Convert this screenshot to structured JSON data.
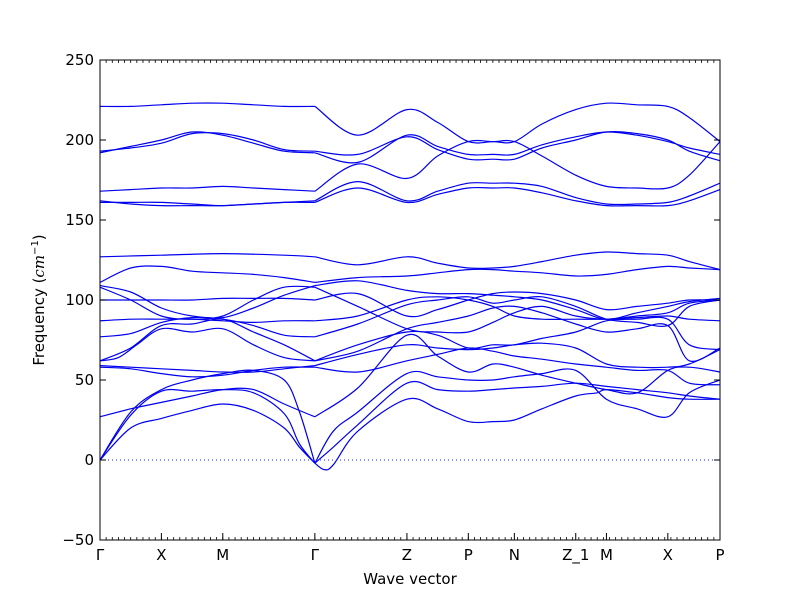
{
  "chart_data": {
    "type": "line",
    "xlabel": "Wave vector",
    "ylabel_prefix": "Frequency (",
    "ylabel_unit": "cm",
    "ylabel_exp": "−1",
    "ylabel_suffix": ")",
    "ylim": [
      -50,
      250
    ],
    "yticks": [
      "−50",
      "0",
      "50",
      "100",
      "150",
      "200",
      "250"
    ],
    "ytick_values": [
      -50,
      0,
      50,
      100,
      150,
      200,
      250
    ],
    "xtick_labels": [
      "Γ",
      "X",
      "M",
      "Γ",
      "Z",
      "P",
      "N",
      "Z_1",
      "M",
      "X",
      "P"
    ],
    "xtick_positions": [
      0,
      1,
      2,
      3.5,
      5,
      6,
      6.75,
      7.75,
      8.25,
      9.25,
      10.1
    ],
    "xlim": [
      0,
      10.1
    ],
    "zero_line": {
      "y": 0,
      "color": "#1f1fff",
      "style": "dotted"
    },
    "line_color": "#0000ee",
    "grid": false,
    "series": [
      {
        "x": [
          0,
          0.5,
          1,
          1.5,
          2,
          2.5,
          3,
          3.25,
          3.5
        ],
        "values": [
          0,
          20,
          26,
          31,
          35,
          31,
          20,
          8,
          -2
        ]
      },
      {
        "x": [
          3.5,
          3.65,
          3.8,
          4.2,
          5,
          5.5,
          6,
          6.4,
          6.75,
          7.2,
          7.75,
          8.1,
          8.25,
          8.75,
          9.25,
          9.6,
          10.1
        ],
        "values": [
          -2,
          -6,
          -3,
          18,
          38,
          32,
          24,
          24,
          25,
          32,
          40,
          42,
          44,
          42,
          39,
          38,
          38
        ]
      },
      {
        "x": [
          0,
          0.5,
          1,
          1.5,
          2,
          2.5,
          3,
          3.25,
          3.5
        ],
        "values": [
          0,
          28,
          43,
          43,
          44,
          42,
          29,
          10,
          -2
        ]
      },
      {
        "x": [
          3.5,
          3.8,
          4.2,
          5,
          5.5,
          6,
          6.4,
          6.75,
          7.2,
          7.75,
          8.25,
          8.75,
          9.25,
          9.6,
          10.1
        ],
        "values": [
          -2,
          8,
          22,
          48,
          44,
          43,
          44,
          45,
          46,
          48,
          46,
          44,
          42,
          40,
          38
        ]
      },
      {
        "x": [
          0,
          0.5,
          1,
          1.5,
          2,
          2.5,
          3,
          3.25,
          3.5
        ],
        "values": [
          0,
          30,
          44,
          50,
          54,
          56,
          50,
          30,
          -2
        ]
      },
      {
        "x": [
          3.5,
          3.8,
          4.2,
          5,
          5.5,
          6,
          6.4,
          6.75,
          7.2,
          7.75,
          8.25,
          8.75,
          9.25,
          9.6,
          10.1
        ],
        "values": [
          -2,
          18,
          30,
          54,
          52,
          50,
          50,
          52,
          54,
          56,
          38,
          32,
          27,
          42,
          50
        ]
      },
      {
        "x": [
          0,
          0.5,
          1,
          1.5,
          2,
          2.5,
          3,
          3.5
        ],
        "values": [
          27,
          32,
          36,
          40,
          44,
          44,
          35,
          27
        ]
      },
      {
        "x": [
          3.5,
          4.2,
          5,
          5.5,
          6,
          6.4,
          6.75,
          7.2,
          7.75,
          8.25,
          8.75,
          9.25,
          9.6,
          10.1
        ],
        "values": [
          27,
          45,
          78,
          65,
          55,
          60,
          58,
          53,
          48,
          44,
          42,
          56,
          58,
          55
        ]
      },
      {
        "x": [
          0,
          0.5,
          1,
          1.5,
          2,
          2.5,
          3,
          3.5
        ],
        "values": [
          58,
          57,
          54,
          52,
          53,
          56,
          58,
          58
        ]
      },
      {
        "x": [
          3.5,
          4.2,
          5,
          5.5,
          6,
          6.4,
          6.75,
          7.2,
          7.75,
          8.25,
          8.75,
          9.25,
          9.6,
          10.1
        ],
        "values": [
          58,
          55,
          62,
          66,
          70,
          68,
          65,
          63,
          60,
          58,
          56,
          56,
          48,
          47
        ]
      },
      {
        "x": [
          0,
          0.5,
          1,
          1.5,
          2,
          2.5,
          3,
          3.5
        ],
        "values": [
          59,
          58,
          57,
          56,
          55,
          55,
          57,
          59
        ]
      },
      {
        "x": [
          3.5,
          4.2,
          5,
          5.5,
          6,
          6.4,
          6.75,
          7.2,
          7.75,
          8.25,
          8.75,
          9.25,
          9.6,
          10.1
        ],
        "values": [
          59,
          66,
          72,
          70,
          69,
          70,
          72,
          73,
          70,
          60,
          58,
          58,
          60,
          69
        ]
      },
      {
        "x": [
          0,
          0.5,
          1,
          1.5,
          2,
          2.5,
          3,
          3.5
        ],
        "values": [
          62,
          70,
          84,
          85,
          88,
          80,
          72,
          62
        ]
      },
      {
        "x": [
          3.5,
          4.2,
          5,
          5.5,
          6,
          6.4,
          6.75,
          7.2,
          7.75,
          8.25,
          8.75,
          9.25,
          9.6,
          10.1
        ],
        "values": [
          62,
          72,
          80,
          78,
          70,
          72,
          72,
          76,
          80,
          87,
          88,
          88,
          72,
          69
        ]
      },
      {
        "x": [
          0,
          0.3,
          0.6,
          1,
          1.5,
          2,
          2.5,
          3,
          3.5
        ],
        "values": [
          62,
          64,
          72,
          82,
          80,
          82,
          72,
          64,
          62
        ]
      },
      {
        "x": [
          3.5,
          4.2,
          5,
          5.5,
          6,
          6.4,
          6.75,
          7.2,
          7.75,
          8.25,
          8.75,
          9.25,
          9.6,
          10.1
        ],
        "values": [
          62,
          68,
          82,
          86,
          90,
          95,
          96,
          92,
          85,
          80,
          82,
          84,
          62,
          70
        ]
      },
      {
        "x": [
          0,
          0.5,
          1,
          1.5,
          2,
          2.5,
          3,
          3.5
        ],
        "values": [
          77,
          79,
          86,
          89,
          88,
          84,
          78,
          77
        ]
      },
      {
        "x": [
          3.5,
          4.2,
          5,
          5.5,
          6,
          6.4,
          6.75,
          7.2,
          7.75,
          8.25,
          8.75,
          9.25,
          9.6,
          10.1
        ],
        "values": [
          77,
          85,
          97,
          100,
          102,
          98,
          100,
          102,
          96,
          88,
          86,
          84,
          96,
          100
        ]
      },
      {
        "x": [
          0,
          0.5,
          1,
          1.5,
          2,
          2.5,
          3,
          3.5
        ],
        "values": [
          87,
          88,
          88,
          88,
          87,
          86,
          87,
          87
        ]
      },
      {
        "x": [
          3.5,
          4.2,
          5,
          5.5,
          6,
          6.4,
          6.75,
          7.2,
          7.75,
          8.25,
          8.75,
          9.25,
          9.6,
          10.1
        ],
        "values": [
          87,
          90,
          100,
          102,
          100,
          96,
          90,
          88,
          88,
          88,
          89,
          90,
          88,
          87
        ]
      },
      {
        "x": [
          0,
          0.5,
          1,
          1.5,
          2,
          2.5,
          3,
          3.5
        ],
        "values": [
          100,
          100,
          100,
          100,
          101,
          101,
          101,
          100
        ]
      },
      {
        "x": [
          3.5,
          4.2,
          5,
          5.5,
          6,
          6.4,
          6.75,
          7.2,
          7.75,
          8.25,
          8.75,
          9.25,
          9.6,
          10.1
        ],
        "values": [
          100,
          104,
          90,
          94,
          100,
          104,
          105,
          104,
          100,
          94,
          96,
          98,
          100,
          100
        ]
      },
      {
        "x": [
          0,
          0.5,
          1,
          1.5,
          2,
          2.5,
          3,
          3.5
        ],
        "values": [
          109,
          105,
          95,
          90,
          89,
          95,
          103,
          109
        ]
      },
      {
        "x": [
          3.5,
          4.2,
          5,
          5.5,
          6,
          6.4,
          6.75,
          7.2,
          7.75,
          8.25,
          8.75,
          9.25,
          9.6,
          10.1
        ],
        "values": [
          109,
          112,
          106,
          104,
          104,
          103,
          102,
          100,
          94,
          88,
          92,
          96,
          99,
          101
        ]
      },
      {
        "x": [
          0,
          0.5,
          1,
          1.5,
          2,
          2.5,
          3,
          3.5
        ],
        "values": [
          108,
          100,
          90,
          88,
          90,
          100,
          108,
          108
        ]
      },
      {
        "x": [
          3.5,
          4.2,
          5,
          5.5,
          6,
          6.4,
          6.75,
          7.2,
          7.75,
          8.25,
          8.75,
          9.25,
          9.6,
          10.1
        ],
        "values": [
          108,
          96,
          82,
          80,
          80,
          86,
          92,
          96,
          90,
          88,
          90,
          92,
          98,
          100
        ]
      },
      {
        "x": [
          0,
          0.5,
          1,
          1.5,
          2,
          2.5,
          3,
          3.5
        ],
        "values": [
          111,
          120,
          121,
          118,
          117,
          116,
          114,
          111
        ]
      },
      {
        "x": [
          3.5,
          4.2,
          5,
          5.5,
          6,
          6.4,
          6.75,
          7.2,
          7.75,
          8.25,
          8.75,
          9.25,
          9.6,
          10.1
        ],
        "values": [
          111,
          114,
          115,
          117,
          119,
          119,
          118,
          117,
          115,
          116,
          119,
          121,
          120,
          119
        ]
      },
      {
        "x": [
          0,
          1,
          2,
          3,
          3.5
        ],
        "values": [
          127,
          128,
          129,
          128,
          127
        ]
      },
      {
        "x": [
          3.5,
          4.2,
          5,
          5.5,
          6,
          6.4,
          6.75,
          7.2,
          7.75,
          8.25,
          8.75,
          9.25,
          9.6,
          10.1
        ],
        "values": [
          127,
          122,
          127,
          123,
          120,
          120,
          121,
          124,
          128,
          130,
          129,
          128,
          124,
          119
        ]
      },
      {
        "x": [
          0,
          0.5,
          1,
          1.5,
          2,
          2.5,
          3,
          3.5
        ],
        "values": [
          161,
          161,
          161,
          160,
          159,
          160,
          161,
          161
        ]
      },
      {
        "x": [
          3.5,
          4.2,
          5,
          5.5,
          6,
          6.4,
          6.75,
          7.2,
          7.75,
          8.25,
          8.75,
          9.25,
          9.6,
          10.1
        ],
        "values": [
          161,
          170,
          161,
          166,
          170,
          170,
          170,
          167,
          162,
          159,
          159,
          159,
          162,
          169
        ]
      },
      {
        "x": [
          0,
          0.5,
          1,
          1.5,
          2,
          2.5,
          3,
          3.5
        ],
        "values": [
          162,
          160,
          159,
          159,
          159,
          160,
          161,
          162
        ]
      },
      {
        "x": [
          3.5,
          4.2,
          5,
          5.5,
          6,
          6.4,
          6.75,
          7.2,
          7.75,
          8.25,
          8.75,
          9.25,
          9.6,
          10.1
        ],
        "values": [
          162,
          174,
          162,
          168,
          173,
          173,
          173,
          171,
          164,
          160,
          160,
          161,
          165,
          173
        ]
      },
      {
        "x": [
          0,
          0.5,
          1,
          1.5,
          2,
          2.5,
          3,
          3.5
        ],
        "values": [
          168,
          169,
          170,
          170,
          171,
          170,
          169,
          168
        ]
      },
      {
        "x": [
          3.5,
          4.2,
          5,
          5.5,
          6,
          6.4,
          6.75,
          7.2,
          7.75,
          8.25,
          8.75,
          9.25,
          9.6,
          10.1
        ],
        "values": [
          168,
          185,
          176,
          190,
          199,
          199,
          199,
          190,
          178,
          171,
          170,
          170,
          178,
          199
        ]
      },
      {
        "x": [
          0,
          0.5,
          1,
          1.5,
          2,
          2.5,
          3,
          3.5
        ],
        "values": [
          192,
          196,
          200,
          205,
          203,
          198,
          193,
          192
        ]
      },
      {
        "x": [
          3.5,
          4.2,
          5,
          5.5,
          6,
          6.4,
          6.75,
          7.2,
          7.75,
          8.25,
          8.75,
          9.25,
          9.6,
          10.1
        ],
        "values": [
          192,
          186,
          203,
          196,
          191,
          191,
          191,
          197,
          202,
          205,
          203,
          199,
          195,
          191
        ]
      },
      {
        "x": [
          0,
          0.5,
          1,
          1.5,
          2,
          2.5,
          3,
          3.5
        ],
        "values": [
          193,
          195,
          198,
          204,
          204,
          200,
          194,
          193
        ]
      },
      {
        "x": [
          3.5,
          4.2,
          5,
          5.5,
          6,
          6.4,
          6.75,
          7.2,
          7.75,
          8.25,
          8.75,
          9.25,
          9.6,
          10.1
        ],
        "values": [
          193,
          191,
          202,
          194,
          188,
          188,
          188,
          195,
          200,
          205,
          204,
          200,
          193,
          187
        ]
      },
      {
        "x": [
          0,
          0.5,
          1,
          1.5,
          2,
          2.5,
          3,
          3.5
        ],
        "values": [
          221,
          221,
          222,
          223,
          223,
          222,
          221,
          221
        ]
      },
      {
        "x": [
          3.5,
          4.2,
          5,
          5.5,
          6,
          6.4,
          6.75,
          7.2,
          7.75,
          8.25,
          8.75,
          9.25,
          9.6,
          10.1
        ],
        "values": [
          221,
          203,
          219,
          211,
          199,
          199,
          199,
          210,
          219,
          223,
          222,
          221,
          214,
          199
        ]
      }
    ]
  }
}
